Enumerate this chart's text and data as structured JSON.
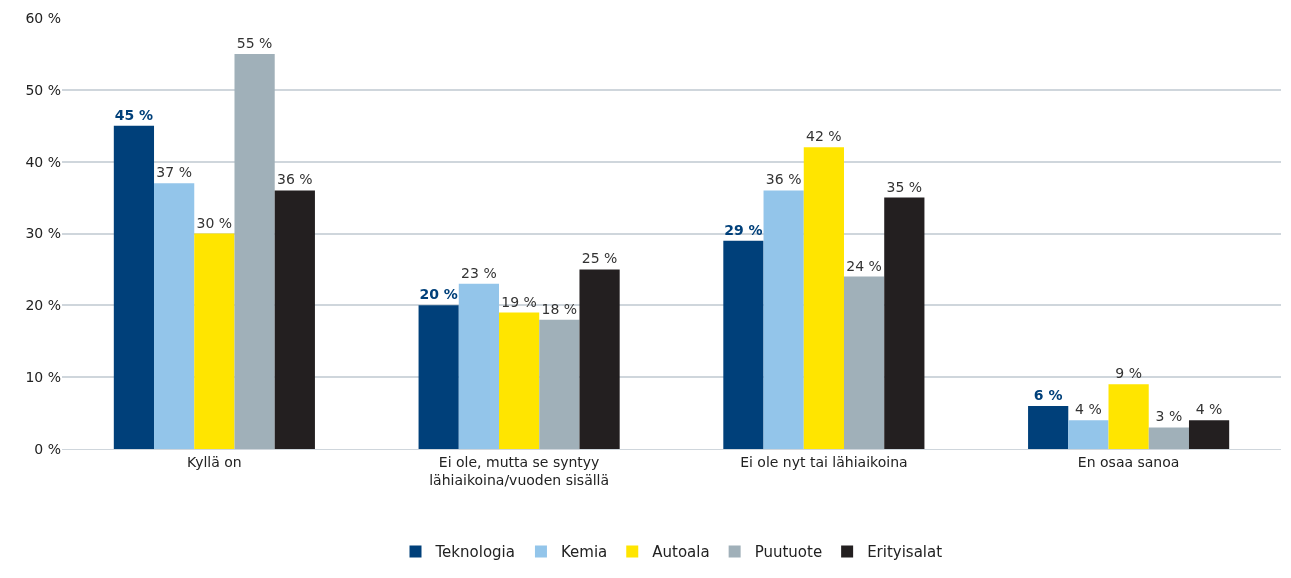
{
  "chart_data": {
    "type": "bar",
    "categories": [
      "Kyllä on",
      "Ei ole, mutta se syntyy\nlähiaikoina/vuoden sisällä",
      "Ei ole nyt tai lähiaikoina",
      "En osaa sanoa"
    ],
    "series": [
      {
        "name": "Teknologia",
        "color": "#00407a",
        "values": [
          45,
          20,
          29,
          6
        ],
        "value_labels": [
          "45 %",
          "20 %",
          "29 %",
          "6 %"
        ]
      },
      {
        "name": "Kemia",
        "color": "#93c5ea",
        "values": [
          37,
          23,
          36,
          4
        ],
        "value_labels": [
          "37 %",
          "23 %",
          "36 %",
          "4 %"
        ]
      },
      {
        "name": "Autoala",
        "color": "#ffe500",
        "values": [
          30,
          19,
          42,
          9
        ],
        "value_labels": [
          "30 %",
          "19 %",
          "42 %",
          "9 %"
        ]
      },
      {
        "name": "Puutuote",
        "color": "#a0b0b9",
        "values": [
          55,
          18,
          24,
          3
        ],
        "value_labels": [
          "55 %",
          "18 %",
          "24 %",
          "3 %"
        ]
      },
      {
        "name": "Erityisalat",
        "color": "#231f20",
        "values": [
          36,
          25,
          35,
          4
        ],
        "value_labels": [
          "36 %",
          "25 %",
          "35 %",
          "4 %"
        ]
      }
    ],
    "ylim": [
      0,
      60
    ],
    "yticks": [
      {
        "value": 0,
        "label": "0 %"
      },
      {
        "value": 10,
        "label": "10 %"
      },
      {
        "value": 20,
        "label": "20 %"
      },
      {
        "value": 30,
        "label": "30 %"
      },
      {
        "value": 40,
        "label": "40 %"
      },
      {
        "value": 50,
        "label": "50 %"
      },
      {
        "value": 60,
        "label": "60 %"
      }
    ],
    "grid": "y",
    "legend": "bottom"
  }
}
